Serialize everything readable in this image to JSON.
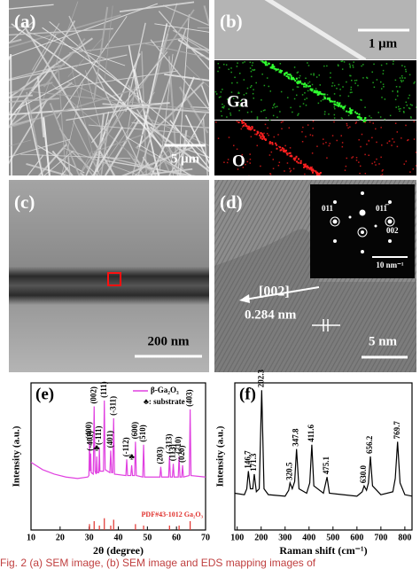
{
  "figure": {
    "panel_a": {
      "label": "(a)",
      "scale": "5 μm"
    },
    "panel_b": {
      "label": "(b)",
      "scale": "1 μm",
      "map_ga": "Ga",
      "map_o": "O"
    },
    "panel_c": {
      "label": "(c)",
      "scale": "200 nm"
    },
    "panel_d": {
      "label": "(d)",
      "scale": "5 nm",
      "direction": "[002]",
      "spacing": "0.284 nm",
      "spot_1": "011",
      "spot_2": "011̅",
      "spot_3": "002",
      "inset_scale": "10 nm⁻¹"
    },
    "caption": "Fig. 2  (a) SEM image, (b) SEM image and EDS mapping images of"
  },
  "chart_data": [
    {
      "type": "line",
      "panel_label": "(e)",
      "x_label": "2θ (degree)",
      "y_label": "Intensity (a.u.)",
      "x": [
        10,
        14,
        18,
        22,
        26,
        29.5,
        29.9,
        30.1,
        30.3,
        30.5,
        30.7,
        31.4,
        31.7,
        32.0,
        32.4,
        32.6,
        32.8,
        33.3,
        33.5,
        33.7,
        34.9,
        35.2,
        35.5,
        37.1,
        37.4,
        37.7,
        38.1,
        38.4,
        38.7,
        42.6,
        42.9,
        43.2,
        44.3,
        44.6,
        44.9,
        45.6,
        45.9,
        46.2,
        48.4,
        48.7,
        49.0,
        54.3,
        54.6,
        54.9,
        57.3,
        57.6,
        57.9,
        58.6,
        58.9,
        59.2,
        60.6,
        60.9,
        61.2,
        61.8,
        62.1,
        62.4,
        64.4,
        64.7,
        65.0,
        70
      ],
      "series": [
        {
          "name": "β-Ga₂O₃",
          "color": "#e040e0",
          "values": [
            46,
            41,
            38,
            36,
            35,
            36,
            37,
            60,
            40,
            52,
            39,
            38,
            84,
            40,
            38,
            50,
            39,
            39,
            56,
            40,
            40,
            88,
            41,
            39,
            54,
            39,
            39,
            76,
            38,
            37,
            48,
            37,
            37,
            44,
            37,
            37,
            60,
            37,
            36,
            58,
            36,
            36,
            43,
            36,
            36,
            50,
            36,
            36,
            45,
            36,
            36,
            50,
            36,
            36,
            44,
            36,
            37,
            82,
            37,
            36
          ]
        }
      ],
      "legend_note": "♣: substrate",
      "reference": {
        "name": "PDF#43-1012 Ga₂O₃",
        "color": "#e0302c",
        "x": [
          30.1,
          31.7,
          33.5,
          35.2,
          37.4,
          38.4,
          45.9,
          48.7,
          57.6,
          60.9,
          64.7
        ],
        "values": [
          4,
          6,
          3,
          8,
          3,
          7,
          4,
          3,
          3,
          3,
          6
        ]
      },
      "annotations": [
        {
          "text": "(400)",
          "x": 30.1
        },
        {
          "text": "(-401)",
          "x": 30.5
        },
        {
          "text": "(002)",
          "x": 31.7
        },
        {
          "text": "♣",
          "x": 32.6
        },
        {
          "text": "(-111)",
          "x": 33.5
        },
        {
          "text": "(111)",
          "x": 35.2
        },
        {
          "text": "(401)",
          "x": 37.4
        },
        {
          "text": "(-311)",
          "x": 38.4
        },
        {
          "text": "(-112)",
          "x": 42.9
        },
        {
          "text": "♣",
          "x": 44.6
        },
        {
          "text": "(600)",
          "x": 45.9
        },
        {
          "text": "(510)",
          "x": 48.7
        },
        {
          "text": "(203)",
          "x": 54.6
        },
        {
          "text": "(-313)",
          "x": 57.6
        },
        {
          "text": "(113)",
          "x": 58.9
        },
        {
          "text": "(710)",
          "x": 60.9
        },
        {
          "text": "(020)",
          "x": 62.1
        },
        {
          "text": "(403)",
          "x": 64.7
        }
      ],
      "xlim": [
        10,
        70
      ],
      "xticks": [
        10,
        20,
        30,
        40,
        50,
        60,
        70
      ],
      "ylim": [
        0,
        100
      ]
    },
    {
      "type": "line",
      "panel_label": "(f)",
      "x_label": "Raman shift (cm⁻¹)",
      "y_label": "Intensity (a.u.)",
      "x": [
        90,
        130,
        140,
        146.7,
        155,
        165,
        171.3,
        180,
        192,
        202.3,
        212,
        230,
        300,
        315,
        320.5,
        330,
        340,
        347.8,
        358,
        390,
        403,
        411.6,
        420,
        460,
        475.1,
        485,
        600,
        622,
        630,
        640,
        648,
        656.2,
        665,
        700,
        750,
        760,
        769.7,
        780,
        800,
        830
      ],
      "series": [
        {
          "color": "#000000",
          "values": [
            25,
            24,
            28,
            40,
            28,
            28,
            38,
            26,
            28,
            95,
            28,
            24,
            23,
            27,
            32,
            28,
            33,
            55,
            28,
            25,
            32,
            58,
            30,
            25,
            36,
            25,
            23,
            26,
            30,
            27,
            32,
            50,
            30,
            24,
            26,
            35,
            60,
            32,
            24,
            23
          ]
        }
      ],
      "annotations": [
        {
          "text": "146.7",
          "x": 146.7
        },
        {
          "text": "171.3",
          "x": 171.3
        },
        {
          "text": "202.3",
          "x": 202.3
        },
        {
          "text": "320.5",
          "x": 320.5
        },
        {
          "text": "347.8",
          "x": 347.8
        },
        {
          "text": "411.6",
          "x": 411.6
        },
        {
          "text": "475.1",
          "x": 475.1
        },
        {
          "text": "630.0",
          "x": 630.0
        },
        {
          "text": "656.2",
          "x": 656.2
        },
        {
          "text": "769.7",
          "x": 769.7
        }
      ],
      "xlim": [
        90,
        830
      ],
      "xticks": [
        100,
        200,
        300,
        400,
        500,
        600,
        700,
        800
      ],
      "ylim": [
        0,
        100
      ]
    }
  ]
}
